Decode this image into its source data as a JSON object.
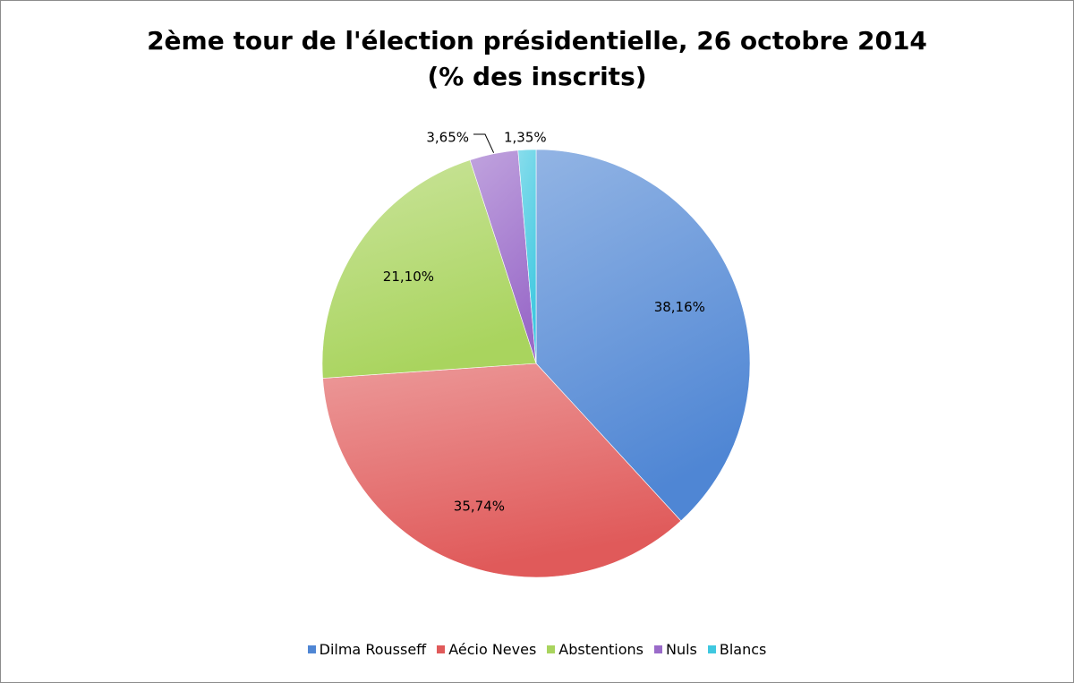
{
  "chart_data": {
    "type": "pie",
    "title": "2ème tour de l'élection présidentielle, 26 octobre 2014",
    "subtitle": "(% des inscrits)",
    "categories": [
      "Dilma Rousseff",
      "Aécio Neves",
      "Abstentions",
      "Nuls",
      "Blancs"
    ],
    "values": [
      38.16,
      35.74,
      21.1,
      3.65,
      1.35
    ],
    "data_labels": [
      "38,16%",
      "35,74%",
      "21,10%",
      "3,65%",
      "1,35%"
    ],
    "colors": [
      "#4f86d4",
      "#e05a5a",
      "#a9d45e",
      "#9a6bc9",
      "#3fc8e0"
    ],
    "start_angle": "12 o'clock",
    "direction": "clockwise",
    "legend_position": "bottom"
  }
}
